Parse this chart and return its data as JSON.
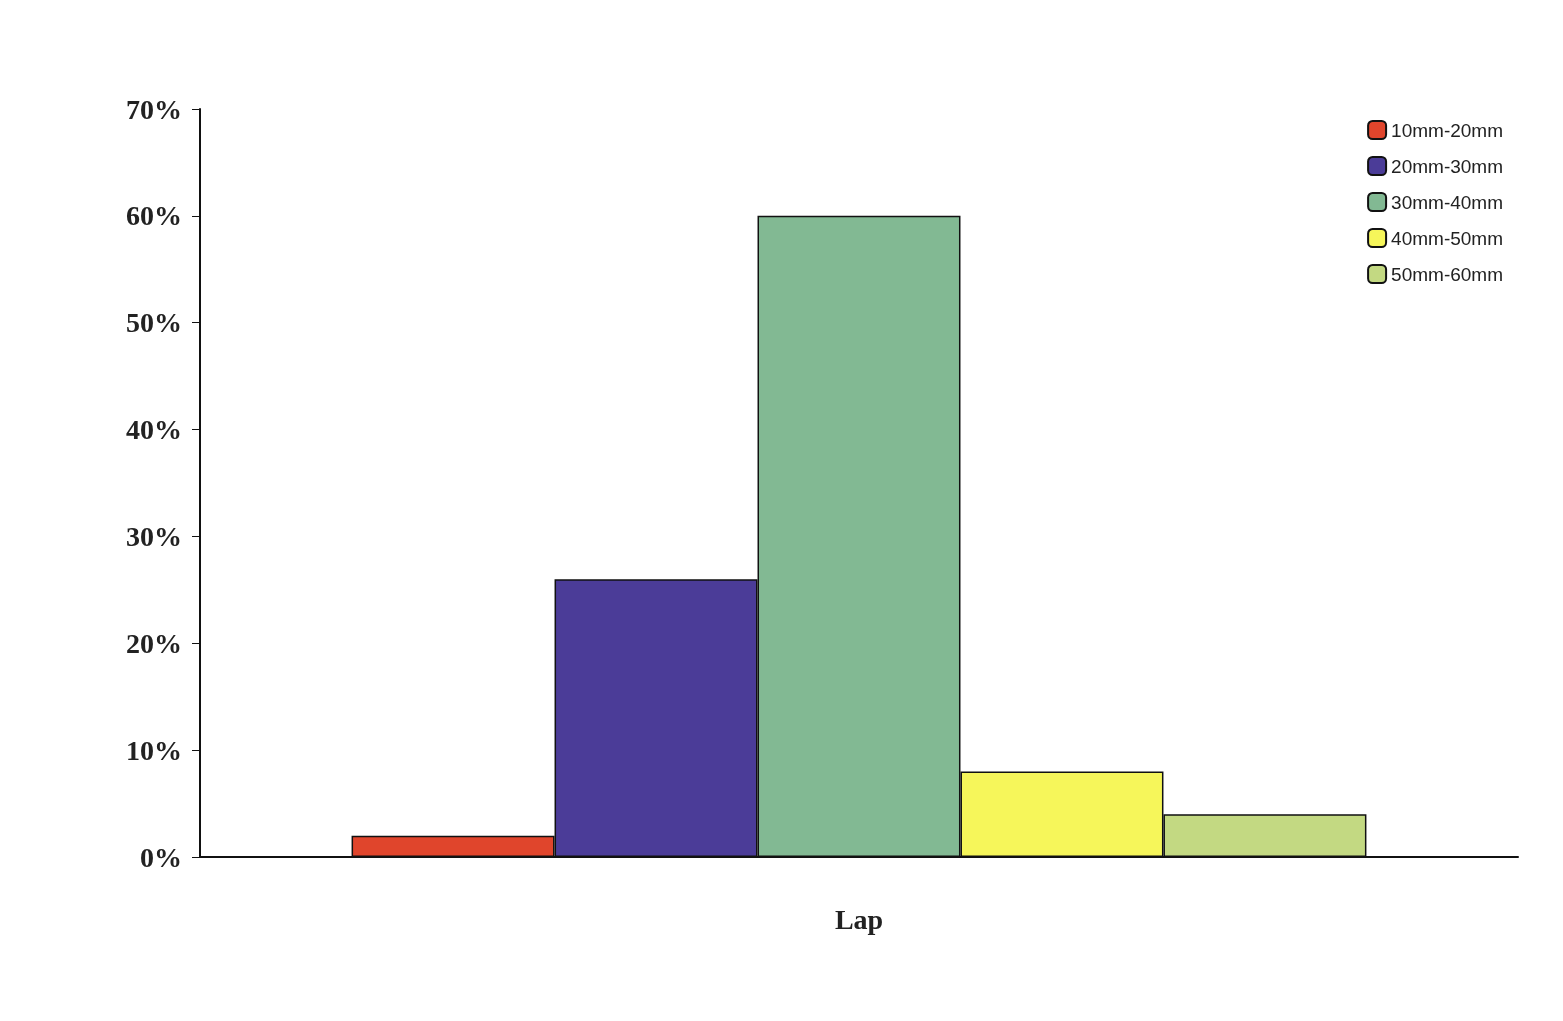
{
  "chart_data": {
    "type": "bar",
    "categories": [
      "Lap"
    ],
    "series": [
      {
        "name": "10mm-20mm",
        "color": "#e0452c",
        "values": [
          2
        ]
      },
      {
        "name": "20mm-30mm",
        "color": "#4b3c98",
        "values": [
          26
        ]
      },
      {
        "name": "30mm-40mm",
        "color": "#82b993",
        "values": [
          60
        ]
      },
      {
        "name": "40mm-50mm",
        "color": "#f6f65a",
        "values": [
          8
        ]
      },
      {
        "name": "50mm-60mm",
        "color": "#c3d982",
        "values": [
          4
        ]
      }
    ],
    "ylim": [
      0,
      70
    ],
    "yticks": [
      {
        "value": 0,
        "label": "0%"
      },
      {
        "value": 10,
        "label": "10%"
      },
      {
        "value": 20,
        "label": "20%"
      },
      {
        "value": 30,
        "label": "30%"
      },
      {
        "value": 40,
        "label": "40%"
      },
      {
        "value": 50,
        "label": "50%"
      },
      {
        "value": 60,
        "label": "60%"
      },
      {
        "value": 70,
        "label": "70%"
      }
    ],
    "grid": false,
    "legend": "top right"
  }
}
